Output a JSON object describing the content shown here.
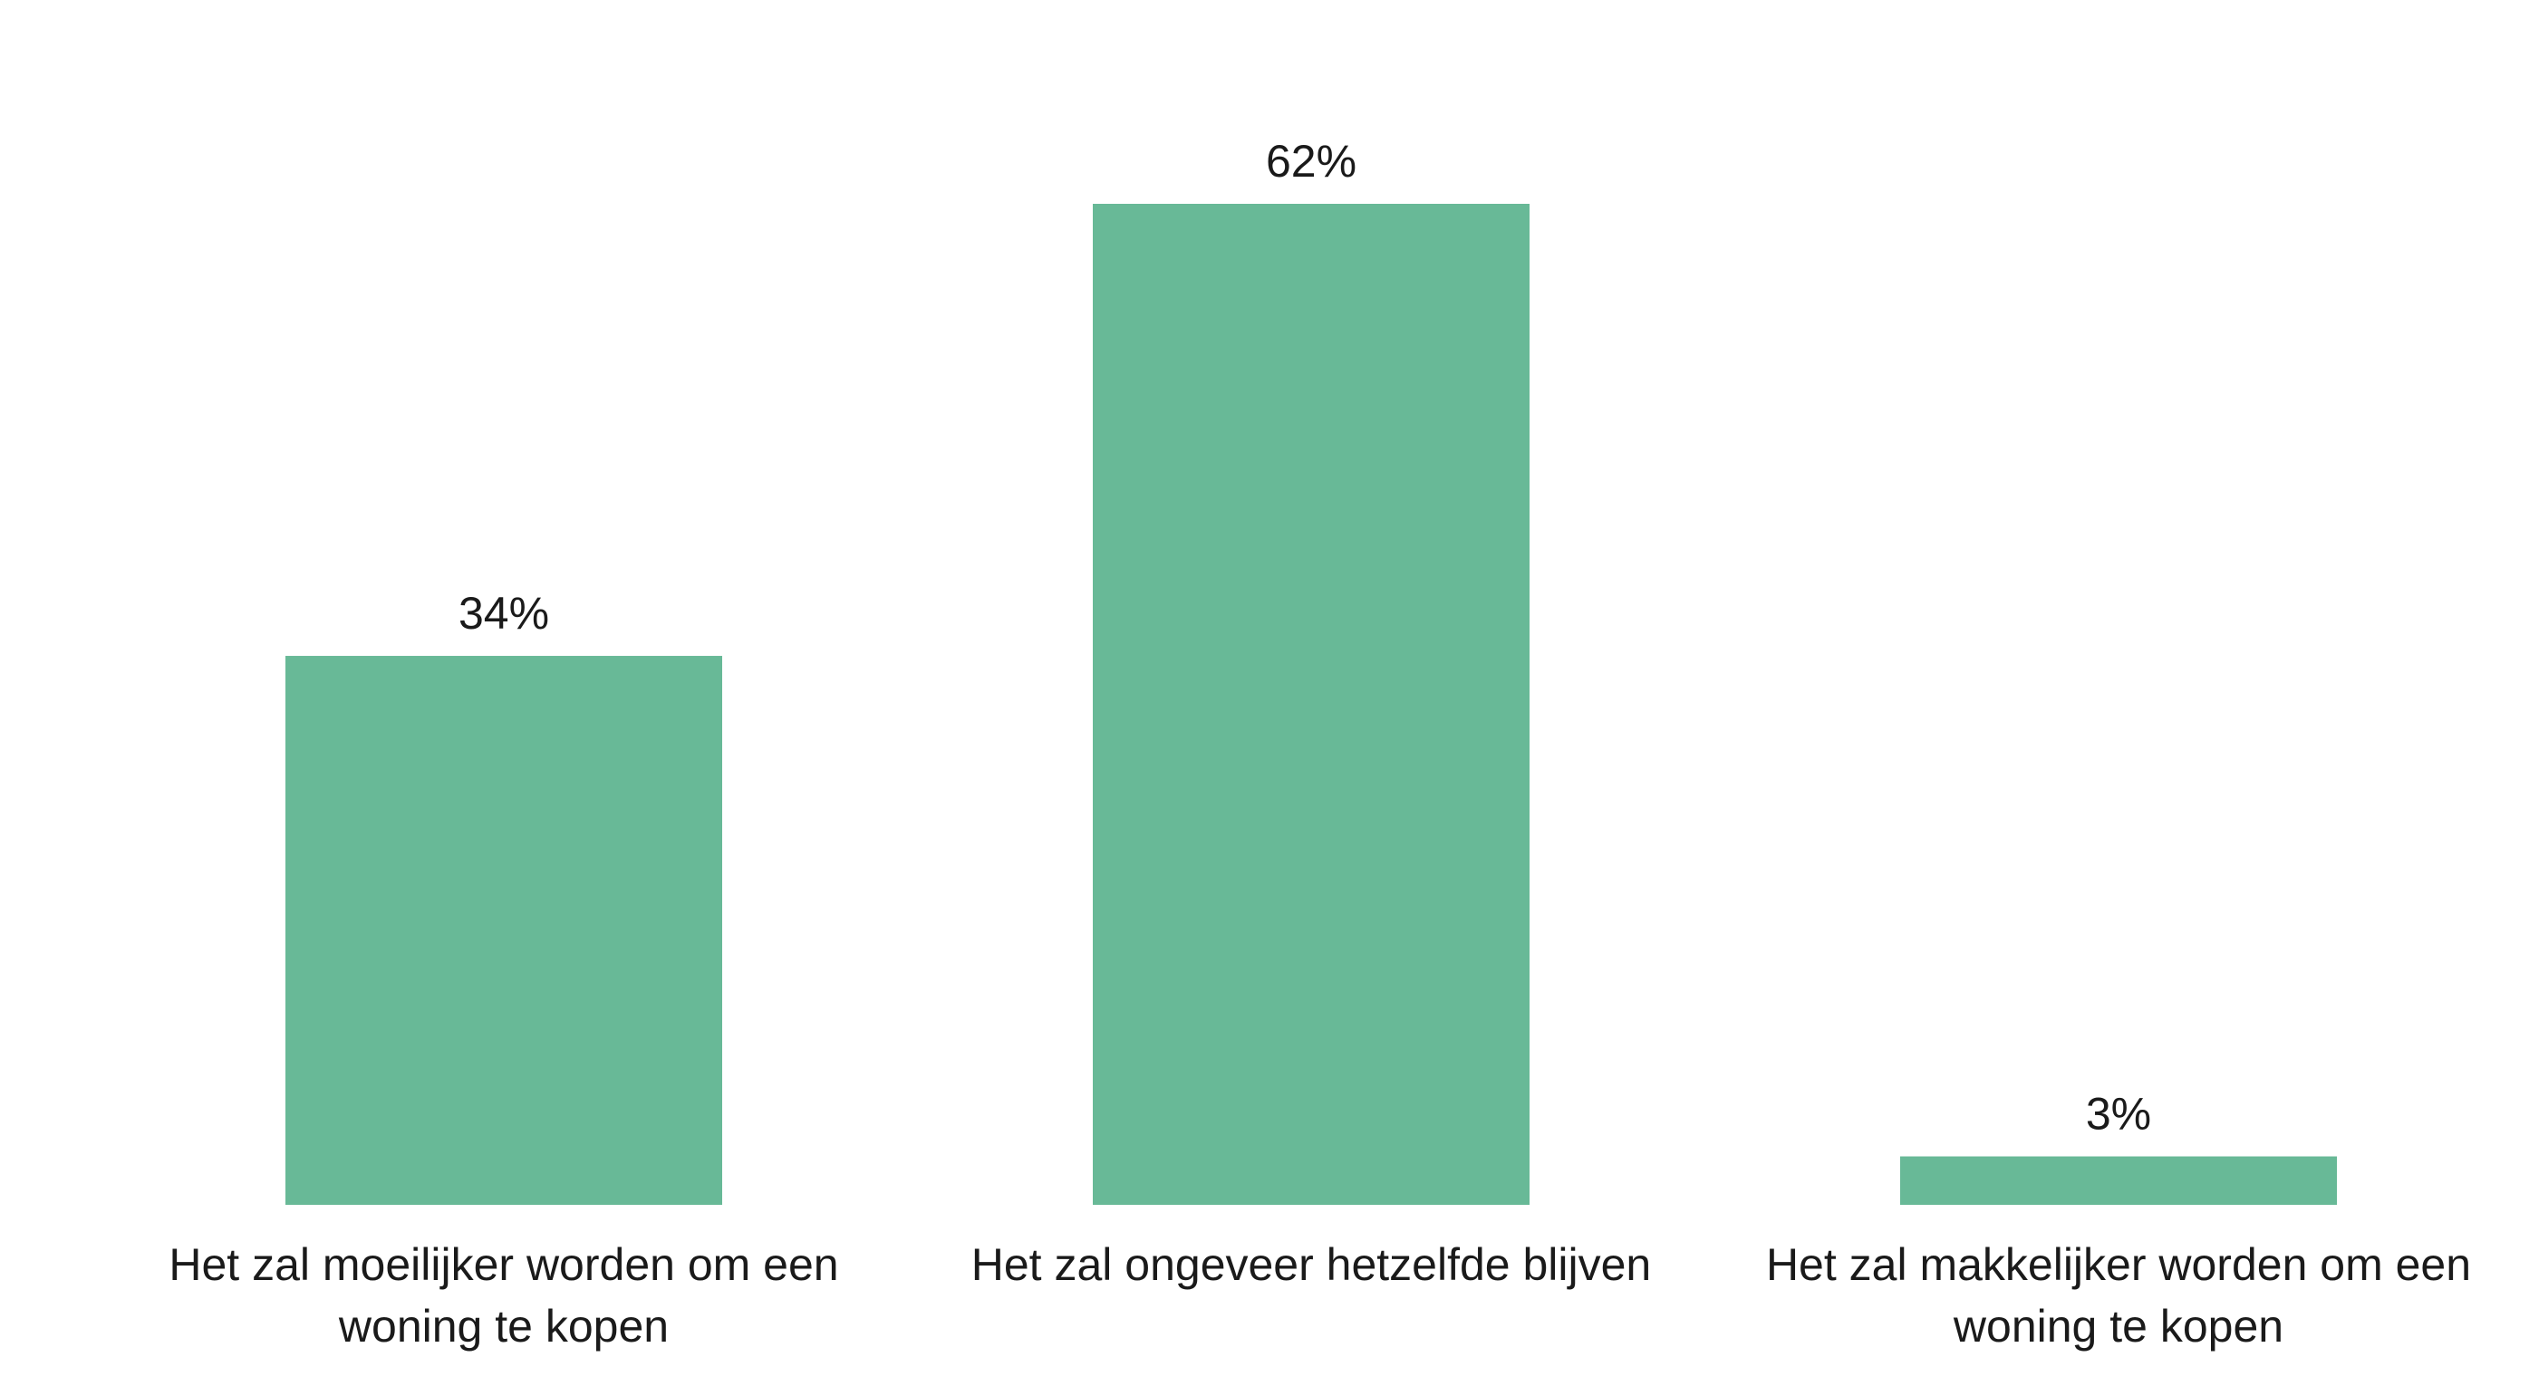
{
  "chart_data": {
    "type": "bar",
    "categories": [
      "Het zal moeilijker worden om een woning te kopen",
      "Het zal ongeveer hetzelfde blijven",
      "Het zal makkelijker worden om een woning te kopen"
    ],
    "category_lines": [
      [
        "Het zal moeilijker worden om een",
        "woning te kopen"
      ],
      [
        "Het zal ongeveer hetzelfde blijven"
      ],
      [
        "Het zal makkelijker worden om een",
        "woning te kopen"
      ]
    ],
    "values": [
      34,
      62,
      3
    ],
    "value_labels": [
      "34%",
      "62%",
      "3%"
    ],
    "unit": "%",
    "title": "",
    "xlabel": "",
    "ylabel": "",
    "ylim": [
      0,
      62
    ],
    "grid": false,
    "legend": "none",
    "colors": {
      "bar": "#68b997",
      "text": "#1a1a1a",
      "background": "#ffffff"
    }
  }
}
